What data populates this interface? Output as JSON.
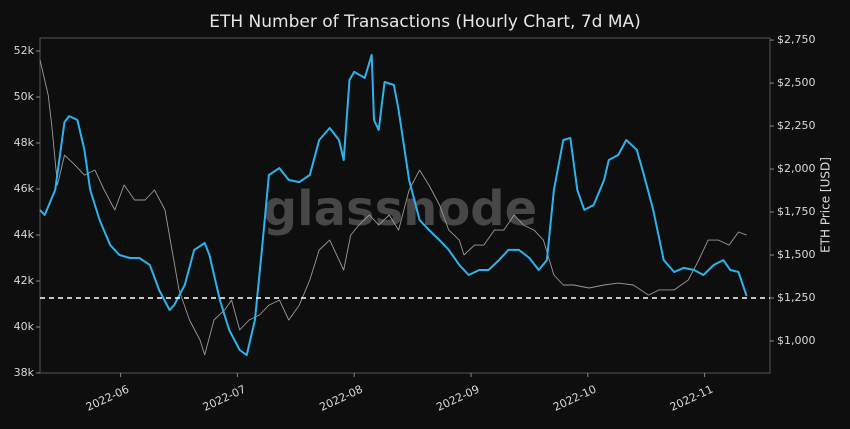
{
  "chart_data": {
    "type": "line",
    "title": "ETH Number of Transactions (Hourly Chart, 7d MA)",
    "y2_label": "ETH Price [USD]",
    "watermark": "glassnode",
    "xlim": [
      5.31,
      11.56
    ],
    "xticks": [
      {
        "value": 6,
        "label": "2022-06"
      },
      {
        "value": 7,
        "label": "2022-07"
      },
      {
        "value": 8,
        "label": "2022-08"
      },
      {
        "value": 9,
        "label": "2022-09"
      },
      {
        "value": 10,
        "label": "2022-10"
      },
      {
        "value": 11,
        "label": "2022-11"
      }
    ],
    "ylim": [
      38000,
      52565
    ],
    "yticks": [
      {
        "value": 38000,
        "label": "38k"
      },
      {
        "value": 40000,
        "label": "40k"
      },
      {
        "value": 42000,
        "label": "42k"
      },
      {
        "value": 44000,
        "label": "44k"
      },
      {
        "value": 46000,
        "label": "46k"
      },
      {
        "value": 48000,
        "label": "48k"
      },
      {
        "value": 50000,
        "label": "50k"
      },
      {
        "value": 52000,
        "label": "52k"
      }
    ],
    "y2lim": [
      814,
      2762
    ],
    "y2ticks": [
      {
        "value": 1000,
        "label": "$1,000"
      },
      {
        "value": 1250,
        "label": "$1,250"
      },
      {
        "value": 1500,
        "label": "$1,500"
      },
      {
        "value": 1750,
        "label": "$1,750"
      },
      {
        "value": 2000,
        "label": "$2,000"
      },
      {
        "value": 2250,
        "label": "$2,250"
      },
      {
        "value": 2500,
        "label": "$2,500"
      },
      {
        "value": 2750,
        "label": "$2,750"
      }
    ],
    "reference_line": 41260,
    "reference_color": "#ffffff",
    "series": [
      {
        "color": "#2cb3ec",
        "axis": "y",
        "x": [
          5.31,
          5.35,
          5.44,
          5.52,
          5.56,
          5.63,
          5.69,
          5.74,
          5.82,
          5.91,
          5.99,
          6.08,
          6.16,
          6.25,
          6.33,
          6.42,
          6.46,
          6.55,
          6.63,
          6.72,
          6.76,
          6.85,
          6.93,
          7.02,
          7.08,
          7.15,
          7.21,
          7.27,
          7.36,
          7.44,
          7.53,
          7.62,
          7.7,
          7.79,
          7.87,
          7.91,
          7.96,
          8.0,
          8.09,
          8.15,
          8.17,
          8.21,
          8.26,
          8.34,
          8.38,
          8.47,
          8.56,
          8.64,
          8.73,
          8.81,
          8.9,
          8.98,
          9.07,
          9.15,
          9.24,
          9.32,
          9.41,
          9.5,
          9.58,
          9.65,
          9.71,
          9.79,
          9.85,
          9.91,
          9.97,
          10.05,
          10.14,
          10.18,
          10.26,
          10.33,
          10.42,
          10.48,
          10.56,
          10.65,
          10.74,
          10.82,
          10.91,
          10.99,
          11.08,
          11.16,
          11.22,
          11.29,
          11.36
        ],
        "values": [
          45090,
          44870,
          45960,
          48910,
          49170,
          49000,
          47700,
          45960,
          44650,
          43570,
          43130,
          43000,
          43000,
          42700,
          41610,
          40740,
          40960,
          41830,
          43350,
          43650,
          43130,
          41170,
          39870,
          39000,
          38780,
          40300,
          43350,
          46610,
          46910,
          46390,
          46300,
          46610,
          48130,
          48650,
          48130,
          47260,
          50740,
          51090,
          50830,
          51830,
          49000,
          48570,
          50650,
          50520,
          49430,
          46390,
          44650,
          44220,
          43780,
          43350,
          42700,
          42260,
          42480,
          42480,
          42910,
          43350,
          43350,
          43000,
          42480,
          42910,
          45960,
          48130,
          48220,
          45960,
          45090,
          45300,
          46390,
          47260,
          47480,
          48130,
          47700,
          46610,
          45090,
          42910,
          42390,
          42570,
          42480,
          42260,
          42700,
          42910,
          42480,
          42390,
          41350
        ]
      },
      {
        "color": "#9a9a9a",
        "axis": "y2",
        "x": [
          5.31,
          5.38,
          5.41,
          5.46,
          5.52,
          5.61,
          5.69,
          5.78,
          5.86,
          5.95,
          6.03,
          6.12,
          6.21,
          6.29,
          6.38,
          6.44,
          6.5,
          6.59,
          6.68,
          6.72,
          6.8,
          6.89,
          6.95,
          7.02,
          7.1,
          7.19,
          7.27,
          7.36,
          7.44,
          7.53,
          7.62,
          7.7,
          7.79,
          7.91,
          7.97,
          8.04,
          8.13,
          8.21,
          8.3,
          8.38,
          8.47,
          8.56,
          8.64,
          8.73,
          8.81,
          8.9,
          8.94,
          9.03,
          9.11,
          9.2,
          9.28,
          9.37,
          9.45,
          9.54,
          9.62,
          9.71,
          9.79,
          9.88,
          10.01,
          10.14,
          10.26,
          10.39,
          10.52,
          10.61,
          10.74,
          10.86,
          10.95,
          11.03,
          11.12,
          11.21,
          11.29,
          11.36
        ],
        "values": [
          2634,
          2430,
          2256,
          1907,
          2081,
          2023,
          1965,
          1994,
          1878,
          1762,
          1907,
          1820,
          1820,
          1878,
          1762,
          1529,
          1297,
          1122,
          1006,
          919,
          1122,
          1180,
          1238,
          1064,
          1122,
          1151,
          1209,
          1238,
          1122,
          1209,
          1355,
          1529,
          1587,
          1413,
          1616,
          1674,
          1733,
          1674,
          1733,
          1645,
          1878,
          1994,
          1907,
          1791,
          1645,
          1587,
          1500,
          1558,
          1558,
          1645,
          1645,
          1733,
          1674,
          1645,
          1587,
          1384,
          1326,
          1326,
          1308,
          1326,
          1337,
          1326,
          1267,
          1297,
          1297,
          1355,
          1471,
          1587,
          1587,
          1558,
          1634,
          1616
        ]
      }
    ]
  }
}
